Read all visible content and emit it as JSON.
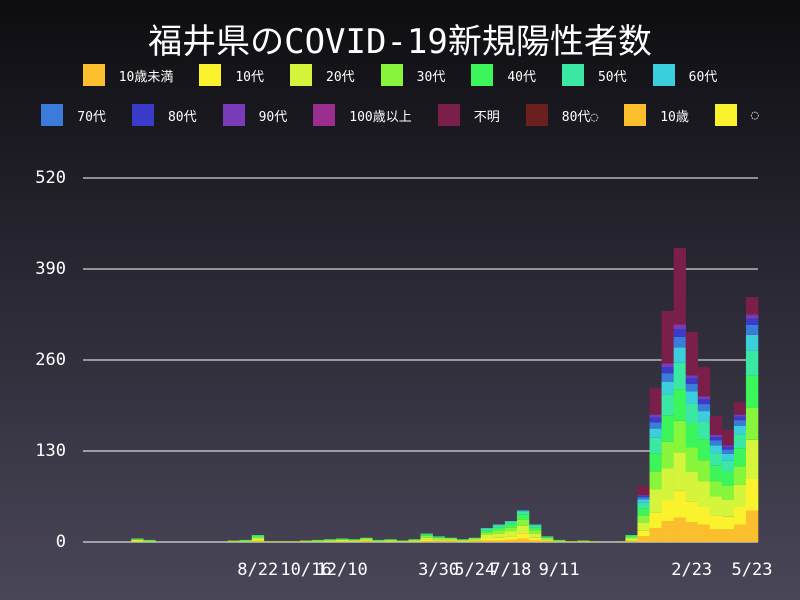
{
  "chart_data": {
    "type": "bar",
    "stacked": true,
    "title": "福井県のCOVID-19新規陽性者数",
    "categories": [
      null,
      null,
      null,
      null,
      null,
      null,
      null,
      null,
      null,
      null,
      null,
      null,
      null,
      null,
      "8/22",
      null,
      null,
      null,
      "10/16",
      null,
      null,
      "12/10",
      null,
      null,
      null,
      null,
      null,
      null,
      null,
      "3/30",
      null,
      null,
      "5/24",
      null,
      null,
      "7/18",
      null,
      null,
      null,
      "9/11",
      null,
      null,
      null,
      null,
      null,
      null,
      null,
      null,
      null,
      null,
      "2/23",
      null,
      null,
      null,
      null,
      "5/23"
    ],
    "series": [
      {
        "name": "10歳未満",
        "color": "#fbbf2e",
        "values": [
          0,
          0,
          0,
          0,
          0,
          0,
          0,
          0,
          0,
          0,
          0,
          0,
          0,
          0,
          1,
          0,
          0,
          0,
          0,
          0,
          0,
          0,
          0,
          1,
          0,
          0,
          0,
          0,
          1,
          1,
          1,
          0,
          1,
          2,
          2,
          3,
          5,
          2,
          1,
          0,
          0,
          0,
          0,
          0,
          0,
          1,
          8,
          20,
          30,
          35,
          28,
          25,
          18,
          18,
          25,
          45
        ]
      },
      {
        "name": "10代",
        "color": "#fbf22e",
        "values": [
          0,
          0,
          0,
          0,
          1,
          0,
          0,
          0,
          0,
          0,
          0,
          0,
          0,
          0,
          1,
          0,
          0,
          0,
          0,
          0,
          1,
          1,
          1,
          1,
          0,
          1,
          0,
          1,
          2,
          1,
          1,
          1,
          1,
          3,
          4,
          5,
          7,
          4,
          1,
          0,
          0,
          0,
          0,
          0,
          0,
          1,
          8,
          22,
          30,
          38,
          30,
          25,
          20,
          18,
          25,
          45
        ]
      },
      {
        "name": "20代",
        "color": "#d4f53b",
        "values": [
          0,
          0,
          0,
          0,
          2,
          1,
          0,
          0,
          0,
          0,
          0,
          0,
          1,
          1,
          3,
          1,
          1,
          1,
          1,
          1,
          1,
          2,
          1,
          2,
          1,
          1,
          1,
          1,
          3,
          2,
          2,
          1,
          2,
          5,
          6,
          7,
          11,
          6,
          2,
          1,
          1,
          1,
          1,
          0,
          1,
          3,
          12,
          33,
          45,
          55,
          42,
          37,
          27,
          24,
          32,
          56
        ]
      },
      {
        "name": "30代",
        "color": "#86f53b",
        "values": [
          0,
          0,
          0,
          0,
          1,
          1,
          0,
          0,
          0,
          0,
          0,
          0,
          1,
          1,
          2,
          0,
          0,
          0,
          1,
          1,
          1,
          1,
          1,
          1,
          1,
          1,
          1,
          1,
          3,
          2,
          1,
          1,
          1,
          4,
          5,
          6,
          9,
          5,
          2,
          1,
          0,
          1,
          0,
          0,
          0,
          2,
          10,
          26,
          38,
          45,
          35,
          30,
          22,
          20,
          26,
          46
        ]
      },
      {
        "name": "40代",
        "color": "#3bf55a",
        "values": [
          0,
          0,
          0,
          0,
          1,
          1,
          0,
          0,
          0,
          0,
          0,
          0,
          0,
          1,
          2,
          0,
          0,
          0,
          0,
          1,
          1,
          1,
          1,
          1,
          1,
          1,
          0,
          1,
          2,
          1,
          1,
          1,
          1,
          3,
          4,
          5,
          7,
          4,
          1,
          1,
          0,
          0,
          0,
          0,
          0,
          2,
          10,
          26,
          38,
          45,
          35,
          30,
          22,
          20,
          26,
          46
        ]
      },
      {
        "name": "50代",
        "color": "#3be8a3",
        "values": [
          0,
          0,
          0,
          0,
          0,
          0,
          0,
          0,
          0,
          0,
          0,
          0,
          0,
          0,
          1,
          0,
          0,
          0,
          0,
          0,
          0,
          0,
          0,
          0,
          0,
          0,
          0,
          0,
          1,
          1,
          0,
          0,
          0,
          2,
          3,
          3,
          4,
          3,
          1,
          0,
          0,
          0,
          0,
          0,
          0,
          1,
          8,
          22,
          30,
          38,
          28,
          25,
          18,
          16,
          20,
          36
        ]
      },
      {
        "name": "60代",
        "color": "#3bcfdc",
        "values": [
          0,
          0,
          0,
          0,
          0,
          0,
          0,
          0,
          0,
          0,
          0,
          0,
          0,
          0,
          0,
          0,
          0,
          0,
          0,
          0,
          0,
          0,
          0,
          0,
          0,
          0,
          0,
          0,
          0,
          0,
          0,
          0,
          0,
          1,
          1,
          1,
          2,
          1,
          0,
          0,
          0,
          0,
          0,
          0,
          0,
          0,
          5,
          13,
          18,
          22,
          17,
          15,
          11,
          10,
          12,
          22
        ]
      },
      {
        "name": "70代",
        "color": "#3b7bd9",
        "values": [
          0,
          0,
          0,
          0,
          0,
          0,
          0,
          0,
          0,
          0,
          0,
          0,
          0,
          0,
          0,
          0,
          0,
          0,
          0,
          0,
          0,
          0,
          0,
          0,
          0,
          0,
          0,
          0,
          0,
          0,
          0,
          0,
          0,
          0,
          0,
          0,
          0,
          0,
          0,
          0,
          0,
          0,
          0,
          0,
          0,
          0,
          3,
          9,
          12,
          15,
          11,
          10,
          7,
          6,
          8,
          14
        ]
      },
      {
        "name": "80代",
        "color": "#3b3bc9",
        "values": [
          0,
          0,
          0,
          0,
          0,
          0,
          0,
          0,
          0,
          0,
          0,
          0,
          0,
          0,
          0,
          0,
          0,
          0,
          0,
          0,
          0,
          0,
          0,
          0,
          0,
          0,
          0,
          0,
          0,
          0,
          0,
          0,
          0,
          0,
          0,
          0,
          0,
          0,
          0,
          0,
          0,
          0,
          0,
          0,
          0,
          0,
          2,
          7,
          9,
          11,
          8,
          7,
          5,
          4,
          5,
          9
        ]
      },
      {
        "name": "90代",
        "color": "#7a3bb8",
        "values": [
          0,
          0,
          0,
          0,
          0,
          0,
          0,
          0,
          0,
          0,
          0,
          0,
          0,
          0,
          0,
          0,
          0,
          0,
          0,
          0,
          0,
          0,
          0,
          0,
          0,
          0,
          0,
          0,
          0,
          0,
          0,
          0,
          0,
          0,
          0,
          0,
          0,
          0,
          0,
          0,
          0,
          0,
          0,
          0,
          0,
          0,
          1,
          4,
          5,
          6,
          4,
          4,
          3,
          2,
          3,
          5
        ]
      },
      {
        "name": "100歳以上",
        "color": "#9b2d8f",
        "values": [
          0,
          0,
          0,
          0,
          0,
          0,
          0,
          0,
          0,
          0,
          0,
          0,
          0,
          0,
          0,
          0,
          0,
          0,
          0,
          0,
          0,
          0,
          0,
          0,
          0,
          0,
          0,
          0,
          0,
          0,
          0,
          0,
          0,
          0,
          0,
          0,
          0,
          0,
          0,
          0,
          0,
          0,
          0,
          0,
          0,
          0,
          0,
          0,
          0,
          1,
          0,
          0,
          0,
          0,
          0,
          1
        ]
      },
      {
        "name": "不明",
        "color": "#7a1f4a",
        "values": [
          0,
          0,
          0,
          0,
          0,
          0,
          0,
          0,
          0,
          0,
          0,
          0,
          0,
          0,
          0,
          0,
          0,
          0,
          0,
          0,
          0,
          0,
          0,
          0,
          0,
          0,
          0,
          0,
          0,
          0,
          0,
          0,
          0,
          0,
          0,
          0,
          0,
          0,
          0,
          0,
          0,
          0,
          0,
          0,
          0,
          0,
          13,
          38,
          75,
          109,
          62,
          42,
          27,
          22,
          18,
          25
        ]
      },
      {
        "name": "80代◌",
        "color": "#6b1f1f",
        "values": [
          0,
          0,
          0,
          0,
          0,
          0,
          0,
          0,
          0,
          0,
          0,
          0,
          0,
          0,
          0,
          0,
          0,
          0,
          0,
          0,
          0,
          0,
          0,
          0,
          0,
          0,
          0,
          0,
          0,
          0,
          0,
          0,
          0,
          0,
          0,
          0,
          0,
          0,
          0,
          0,
          0,
          0,
          0,
          0,
          0,
          0,
          0,
          0,
          0,
          0,
          0,
          0,
          0,
          0,
          0,
          0
        ]
      },
      {
        "name": "10歳",
        "color": "#fbbf2e",
        "values": [
          0,
          0,
          0,
          0,
          0,
          0,
          0,
          0,
          0,
          0,
          0,
          0,
          0,
          0,
          0,
          0,
          0,
          0,
          0,
          0,
          0,
          0,
          0,
          0,
          0,
          0,
          0,
          0,
          0,
          0,
          0,
          0,
          0,
          0,
          0,
          0,
          0,
          0,
          0,
          0,
          0,
          0,
          0,
          0,
          0,
          0,
          0,
          0,
          0,
          0,
          0,
          0,
          0,
          0,
          0,
          0
        ]
      },
      {
        "name": "◌",
        "color": "#fbf22e",
        "values": [
          0,
          0,
          0,
          0,
          0,
          0,
          0,
          0,
          0,
          0,
          0,
          0,
          0,
          0,
          0,
          0,
          0,
          0,
          0,
          0,
          0,
          0,
          0,
          0,
          0,
          0,
          0,
          0,
          0,
          0,
          0,
          0,
          0,
          0,
          0,
          0,
          0,
          0,
          0,
          0,
          0,
          0,
          0,
          0,
          0,
          0,
          0,
          0,
          0,
          0,
          0,
          0,
          0,
          0,
          0,
          0
        ]
      }
    ],
    "ylim": [
      0,
      560
    ],
    "yticks": [
      0,
      130,
      260,
      390,
      520
    ],
    "grid": true
  }
}
